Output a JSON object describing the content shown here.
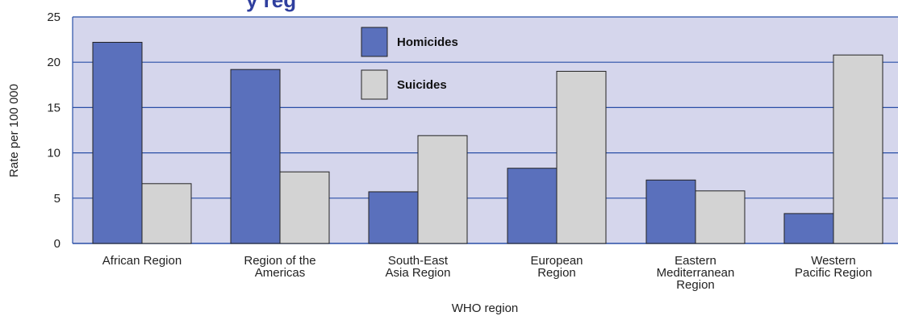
{
  "chart_data": {
    "type": "bar",
    "title_fragment": "y reg",
    "xlabel": "WHO region",
    "ylabel": "Rate per 100 000",
    "ylim": [
      0,
      25
    ],
    "yticks": [
      "0",
      "5",
      "10",
      "15",
      "20",
      "25"
    ],
    "grid": true,
    "legend_position": "top-center",
    "categories": [
      [
        "African Region"
      ],
      [
        "Region of the",
        "Americas"
      ],
      [
        "South-East",
        "Asia Region"
      ],
      [
        "European",
        "Region"
      ],
      [
        "Eastern",
        "Mediterranean",
        "Region"
      ],
      [
        "Western",
        "Pacific Region"
      ]
    ],
    "series": [
      {
        "name": "Homicides",
        "color": "#5a70bc",
        "values": [
          22.2,
          19.2,
          5.7,
          8.3,
          7.0,
          3.3
        ]
      },
      {
        "name": "Suicides",
        "color": "#d3d3d3",
        "values": [
          6.6,
          7.9,
          11.9,
          19.0,
          5.8,
          20.8
        ]
      }
    ],
    "plot_background": "#d5d6ec",
    "grid_color": "#2a4fa6"
  }
}
